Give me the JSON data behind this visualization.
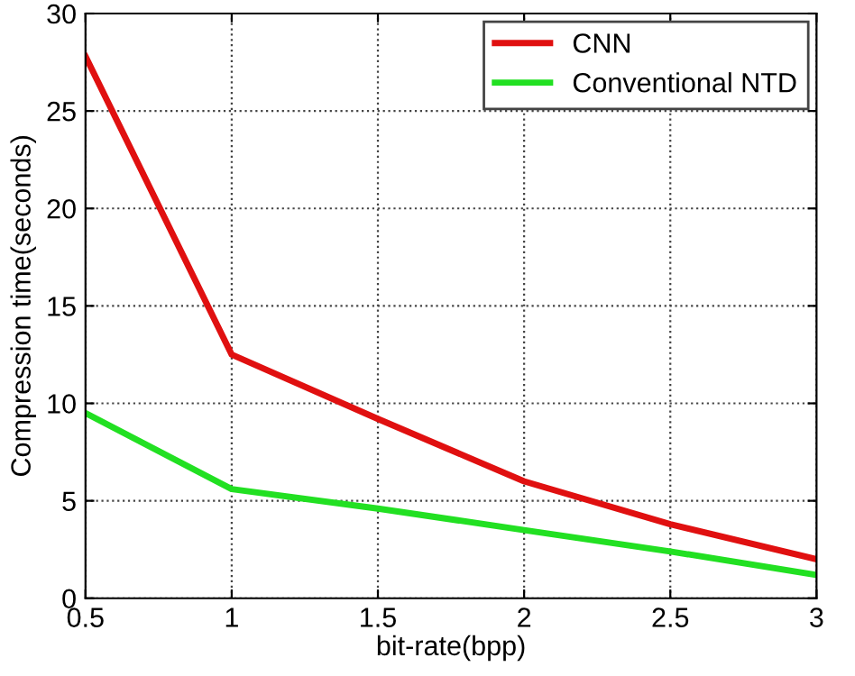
{
  "chart_data": {
    "type": "line",
    "xlabel": "bit-rate(bpp)",
    "ylabel": "Compression time(seconds)",
    "x": [
      0.5,
      1,
      1.5,
      2,
      2.5,
      3
    ],
    "series": [
      {
        "name": "CNN",
        "color": "#e01010",
        "values": [
          27.8,
          12.5,
          9.2,
          6.0,
          3.8,
          2.0
        ]
      },
      {
        "name": "Conventional NTD",
        "color": "#22e022",
        "values": [
          9.5,
          5.6,
          4.6,
          3.5,
          2.4,
          1.2
        ]
      }
    ],
    "xlim": [
      0.5,
      3
    ],
    "ylim": [
      0,
      30
    ],
    "xticks": [
      0.5,
      1,
      1.5,
      2,
      2.5,
      3
    ],
    "yticks": [
      0,
      5,
      10,
      15,
      20,
      25,
      30
    ],
    "grid": true,
    "legend": "top right",
    "line_style": "solid"
  }
}
